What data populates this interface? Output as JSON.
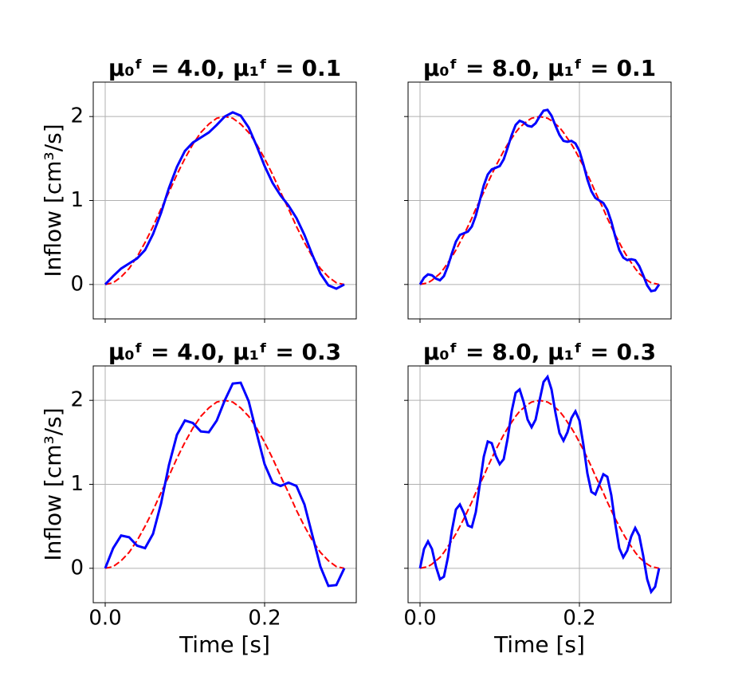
{
  "chart_data": [
    {
      "type": "line",
      "title": "μ₀ᶠ = 4.0, μ₁ᶠ = 0.1",
      "ylabel": "Inflow [cm³/s]",
      "x": [
        0,
        0.01,
        0.02,
        0.03,
        0.04,
        0.05,
        0.06,
        0.07,
        0.08,
        0.09,
        0.1,
        0.11,
        0.12,
        0.13,
        0.14,
        0.15,
        0.16,
        0.17,
        0.18,
        0.19,
        0.2,
        0.21,
        0.22,
        0.23,
        0.24,
        0.25,
        0.26,
        0.27,
        0.28,
        0.29,
        0.3
      ],
      "series": [
        {
          "color": "#0000ff",
          "dashed": false,
          "values": [
            0,
            0.1,
            0.19,
            0.25,
            0.31,
            0.41,
            0.6,
            0.85,
            1.15,
            1.4,
            1.59,
            1.69,
            1.75,
            1.81,
            1.9,
            2,
            2.05,
            2.01,
            1.87,
            1.65,
            1.41,
            1.21,
            1.06,
            0.94,
            0.79,
            0.59,
            0.35,
            0.13,
            -0.01,
            -0.05,
            0
          ]
        },
        {
          "color": "#ff0000",
          "dashed": true,
          "values": [
            0,
            0.02,
            0.09,
            0.19,
            0.33,
            0.5,
            0.69,
            0.9,
            1.1,
            1.31,
            1.5,
            1.67,
            1.81,
            1.91,
            1.98,
            2,
            1.98,
            1.91,
            1.81,
            1.67,
            1.5,
            1.31,
            1.1,
            0.9,
            0.69,
            0.5,
            0.33,
            0.19,
            0.09,
            0.02,
            0
          ]
        }
      ],
      "xlim": [
        -0.015,
        0.315
      ],
      "ylim": [
        -0.41,
        2.41
      ],
      "xticks": [
        0,
        0.2
      ],
      "yticks": [
        0,
        1,
        2
      ],
      "xtick_labels": false,
      "ytick_labels": true,
      "grid": true
    },
    {
      "type": "line",
      "title": "μ₀ᶠ = 8.0, μ₁ᶠ = 0.1",
      "x": [
        0,
        0.005,
        0.01,
        0.015,
        0.02,
        0.025,
        0.03,
        0.035,
        0.04,
        0.045,
        0.05,
        0.055,
        0.06,
        0.065,
        0.07,
        0.075,
        0.08,
        0.085,
        0.09,
        0.095,
        0.1,
        0.105,
        0.11,
        0.115,
        0.12,
        0.125,
        0.13,
        0.135,
        0.14,
        0.145,
        0.15,
        0.155,
        0.16,
        0.165,
        0.17,
        0.175,
        0.18,
        0.185,
        0.19,
        0.195,
        0.2,
        0.205,
        0.21,
        0.215,
        0.22,
        0.225,
        0.23,
        0.235,
        0.24,
        0.245,
        0.25,
        0.255,
        0.26,
        0.265,
        0.27,
        0.275,
        0.28,
        0.285,
        0.29,
        0.295,
        0.3
      ],
      "series": [
        {
          "color": "#0000ff",
          "dashed": false,
          "values": [
            0,
            0.08,
            0.12,
            0.11,
            0.07,
            0.05,
            0.1,
            0.22,
            0.37,
            0.51,
            0.59,
            0.61,
            0.63,
            0.69,
            0.82,
            1,
            1.18,
            1.31,
            1.37,
            1.39,
            1.41,
            1.49,
            1.63,
            1.78,
            1.9,
            1.95,
            1.93,
            1.89,
            1.88,
            1.92,
            2,
            2.07,
            2.08,
            2.01,
            1.89,
            1.78,
            1.71,
            1.7,
            1.71,
            1.68,
            1.59,
            1.43,
            1.25,
            1.11,
            1.03,
            1,
            0.97,
            0.89,
            0.75,
            0.57,
            0.41,
            0.32,
            0.29,
            0.3,
            0.29,
            0.22,
            0.11,
            -0.01,
            -0.08,
            -0.07,
            0
          ]
        },
        {
          "color": "#ff0000",
          "dashed": true,
          "values": [
            0,
            0.01,
            0.02,
            0.05,
            0.09,
            0.13,
            0.19,
            0.26,
            0.33,
            0.41,
            0.5,
            0.59,
            0.69,
            0.79,
            0.9,
            1,
            1.1,
            1.21,
            1.31,
            1.41,
            1.5,
            1.59,
            1.67,
            1.74,
            1.81,
            1.87,
            1.91,
            1.95,
            1.98,
            1.99,
            2,
            1.99,
            1.98,
            1.95,
            1.91,
            1.87,
            1.81,
            1.74,
            1.67,
            1.59,
            1.5,
            1.41,
            1.31,
            1.21,
            1.1,
            1,
            0.9,
            0.79,
            0.69,
            0.59,
            0.5,
            0.41,
            0.33,
            0.26,
            0.19,
            0.13,
            0.09,
            0.05,
            0.02,
            0.01,
            0
          ]
        }
      ],
      "xlim": [
        -0.015,
        0.315
      ],
      "ylim": [
        -0.41,
        2.41
      ],
      "xticks": [
        0,
        0.2
      ],
      "yticks": [
        0,
        1,
        2
      ],
      "xtick_labels": false,
      "ytick_labels": false,
      "grid": true
    },
    {
      "type": "line",
      "title": "μ₀ᶠ = 4.0, μ₁ᶠ = 0.3",
      "ylabel": "Inflow [cm³/s]",
      "xlabel": "Time [s]",
      "x": [
        0,
        0.01,
        0.02,
        0.03,
        0.04,
        0.05,
        0.06,
        0.07,
        0.08,
        0.09,
        0.1,
        0.11,
        0.12,
        0.13,
        0.14,
        0.15,
        0.16,
        0.17,
        0.18,
        0.19,
        0.2,
        0.21,
        0.22,
        0.23,
        0.24,
        0.25,
        0.26,
        0.27,
        0.28,
        0.29,
        0.3
      ],
      "series": [
        {
          "color": "#0000ff",
          "dashed": false,
          "values": [
            0,
            0.24,
            0.39,
            0.37,
            0.27,
            0.24,
            0.41,
            0.77,
            1.23,
            1.59,
            1.76,
            1.73,
            1.63,
            1.62,
            1.76,
            2,
            2.2,
            2.21,
            1.99,
            1.61,
            1.24,
            1.02,
            0.98,
            1.02,
            0.98,
            0.76,
            0.39,
            0.02,
            -0.21,
            -0.2,
            0
          ]
        },
        {
          "color": "#ff0000",
          "dashed": true,
          "values": [
            0,
            0.02,
            0.09,
            0.19,
            0.33,
            0.5,
            0.69,
            0.9,
            1.1,
            1.31,
            1.5,
            1.67,
            1.81,
            1.91,
            1.98,
            2,
            1.98,
            1.91,
            1.81,
            1.67,
            1.5,
            1.31,
            1.1,
            0.9,
            0.69,
            0.5,
            0.33,
            0.19,
            0.09,
            0.02,
            0
          ]
        }
      ],
      "xlim": [
        -0.015,
        0.315
      ],
      "ylim": [
        -0.41,
        2.41
      ],
      "xticks": [
        {
          "value": 0,
          "label": "0.0"
        },
        {
          "value": 0.2,
          "label": "0.2"
        }
      ],
      "yticks": [
        0,
        1,
        2
      ],
      "xtick_labels": true,
      "ytick_labels": true,
      "grid": true
    },
    {
      "type": "line",
      "title": "μ₀ᶠ = 8.0, μ₁ᶠ = 0.3",
      "xlabel": "Time [s]",
      "x": [
        0,
        0.005,
        0.01,
        0.015,
        0.02,
        0.025,
        0.03,
        0.035,
        0.04,
        0.045,
        0.05,
        0.055,
        0.06,
        0.065,
        0.07,
        0.075,
        0.08,
        0.085,
        0.09,
        0.095,
        0.1,
        0.105,
        0.11,
        0.115,
        0.12,
        0.125,
        0.13,
        0.135,
        0.14,
        0.145,
        0.15,
        0.155,
        0.16,
        0.165,
        0.17,
        0.175,
        0.18,
        0.185,
        0.19,
        0.195,
        0.2,
        0.205,
        0.21,
        0.215,
        0.22,
        0.225,
        0.23,
        0.235,
        0.24,
        0.245,
        0.25,
        0.255,
        0.26,
        0.265,
        0.27,
        0.275,
        0.28,
        0.285,
        0.29,
        0.295,
        0.3
      ],
      "series": [
        {
          "color": "#0000ff",
          "dashed": false,
          "values": [
            0,
            0.23,
            0.32,
            0.23,
            0.02,
            -0.13,
            -0.1,
            0.13,
            0.45,
            0.7,
            0.76,
            0.66,
            0.51,
            0.49,
            0.67,
            1,
            1.33,
            1.51,
            1.49,
            1.34,
            1.24,
            1.3,
            1.55,
            1.87,
            2.09,
            2.13,
            1.98,
            1.77,
            1.68,
            1.77,
            2,
            2.22,
            2.28,
            2.13,
            1.85,
            1.61,
            1.52,
            1.62,
            1.79,
            1.87,
            1.76,
            1.47,
            1.13,
            0.91,
            0.88,
            1,
            1.12,
            1.09,
            0.87,
            0.53,
            0.24,
            0.13,
            0.21,
            0.38,
            0.48,
            0.39,
            0.15,
            -0.13,
            -0.28,
            -0.22,
            0
          ]
        },
        {
          "color": "#ff0000",
          "dashed": true,
          "values": [
            0,
            0.01,
            0.02,
            0.05,
            0.09,
            0.13,
            0.19,
            0.26,
            0.33,
            0.41,
            0.5,
            0.59,
            0.69,
            0.79,
            0.9,
            1,
            1.1,
            1.21,
            1.31,
            1.41,
            1.5,
            1.59,
            1.67,
            1.74,
            1.81,
            1.87,
            1.91,
            1.95,
            1.98,
            1.99,
            2,
            1.99,
            1.98,
            1.95,
            1.91,
            1.87,
            1.81,
            1.74,
            1.67,
            1.59,
            1.5,
            1.41,
            1.31,
            1.21,
            1.1,
            1,
            0.9,
            0.79,
            0.69,
            0.59,
            0.5,
            0.41,
            0.33,
            0.26,
            0.19,
            0.13,
            0.09,
            0.05,
            0.02,
            0.01,
            0
          ]
        }
      ],
      "xlim": [
        -0.015,
        0.315
      ],
      "ylim": [
        -0.41,
        2.41
      ],
      "xticks": [
        {
          "value": 0,
          "label": "0.0"
        },
        {
          "value": 0.2,
          "label": "0.2"
        }
      ],
      "yticks": [
        0,
        1,
        2
      ],
      "xtick_labels": true,
      "ytick_labels": false,
      "grid": true
    }
  ]
}
